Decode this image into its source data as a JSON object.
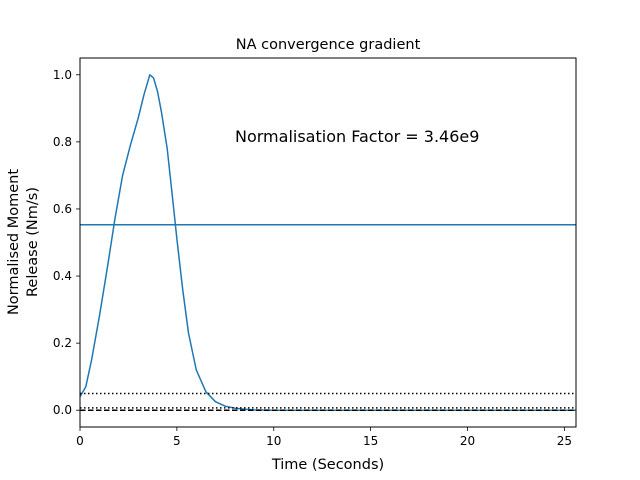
{
  "chart_data": {
    "type": "line",
    "title": "NA convergence gradient",
    "xlabel": "Time (Seconds)",
    "ylabel_lines": [
      "Normalised Moment",
      "Release (Nm/s)"
    ],
    "annotation": "Normalisation Factor = 3.46e9",
    "xlim": [
      0,
      25.6
    ],
    "ylim": [
      -0.05,
      1.05
    ],
    "xticks": [
      0,
      5,
      10,
      15,
      20,
      25
    ],
    "xtick_labels": [
      "0",
      "5",
      "10",
      "15",
      "20",
      "25"
    ],
    "yticks": [
      0.0,
      0.2,
      0.4,
      0.6,
      0.8,
      1.0
    ],
    "ytick_labels": [
      "0.0",
      "0.2",
      "0.4",
      "0.6",
      "0.8",
      "1.0"
    ],
    "grid": false,
    "series": [
      {
        "color": "#1f77b4",
        "style": "solid",
        "x": [
          0,
          0.3,
          0.6,
          1.0,
          1.4,
          1.8,
          2.2,
          2.6,
          3.0,
          3.3,
          3.6,
          3.8,
          4.0,
          4.2,
          4.5,
          4.8,
          5.0,
          5.3,
          5.6,
          6.0,
          6.5,
          7.0,
          7.5,
          8.0,
          8.5,
          9.0,
          10,
          12,
          15,
          20,
          25.6
        ],
        "y": [
          0.04,
          0.07,
          0.15,
          0.28,
          0.42,
          0.57,
          0.7,
          0.79,
          0.87,
          0.94,
          1.0,
          0.99,
          0.95,
          0.89,
          0.78,
          0.62,
          0.51,
          0.36,
          0.23,
          0.12,
          0.055,
          0.025,
          0.012,
          0.006,
          0.003,
          0.001,
          0.0,
          0.0,
          0.0,
          0.0,
          0.0
        ]
      },
      {
        "color": "#1f77b4",
        "style": "solid",
        "x": [
          0,
          25.6
        ],
        "y": [
          0.553,
          0.553
        ]
      },
      {
        "color": "#000000",
        "style": "dotted",
        "x": [
          0,
          25.6
        ],
        "y": [
          0.05,
          0.05
        ]
      },
      {
        "color": "#000000",
        "style": "dashed",
        "x": [
          0,
          25.6
        ],
        "y": [
          0.0,
          0.0
        ]
      },
      {
        "color": "#000000",
        "style": "dotted",
        "x": [
          0,
          25.6
        ],
        "y": [
          0.007,
          0.007
        ]
      }
    ]
  }
}
